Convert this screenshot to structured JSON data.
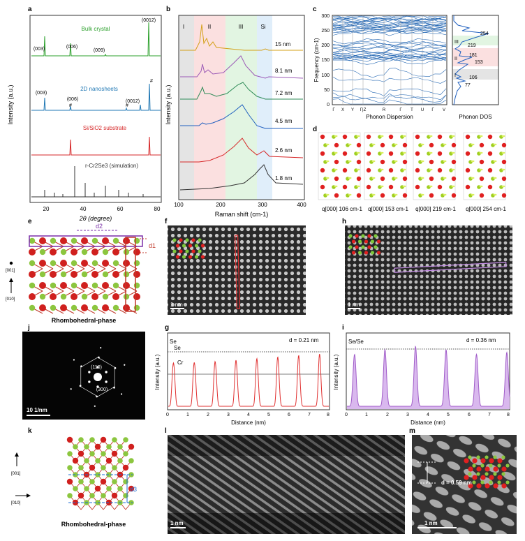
{
  "panel_letters": [
    "a",
    "b",
    "c",
    "d",
    "e",
    "f",
    "g",
    "h",
    "i",
    "j",
    "k",
    "l",
    "m"
  ],
  "panel_a": {
    "ylabel": "Intensity (a.u.)",
    "xlabel": "2θ (degree)",
    "xticks": [
      "20",
      "40",
      "60",
      "80"
    ],
    "labels": {
      "bulk": "Bulk crystal",
      "nano": "2D nanosheets",
      "substrate": "Si/SiO2 substrate",
      "sim": "r-Cr2Se3 (simulation)"
    },
    "peaks_bulk": [
      "(003)",
      "(006)",
      "(009)",
      "(0012)"
    ],
    "peaks_nano": [
      "(003)",
      "(006)",
      "(0012)"
    ],
    "hash": "#",
    "colors": {
      "bulk": "#2ca02c",
      "nano": "#1f77b4",
      "substrate": "#d62728",
      "sim": "#333333"
    }
  },
  "panel_b": {
    "ylabel": "Intensity (a.u.)",
    "xlabel": "Raman shift (cm-1)",
    "xticks": [
      "100",
      "200",
      "300",
      "400"
    ],
    "regions": [
      "I",
      "II",
      "III",
      "Si"
    ],
    "thickness": [
      "15 nm",
      "8.1 nm",
      "7.2 nm",
      "4.5 nm",
      "2.6 nm",
      "1.8 nm"
    ],
    "colors": [
      "#d4a017",
      "#9b59b6",
      "#2e8b57",
      "#1f5fbf",
      "#d62728",
      "#333333"
    ]
  },
  "panel_c": {
    "ylabel": "Frequency (cm-1)",
    "yticks": [
      "0",
      "50",
      "100",
      "150",
      "200",
      "250",
      "300"
    ],
    "xticks": [
      "Γ",
      "X",
      "Y",
      "Γ|Z",
      "R",
      "Γ",
      "T",
      "U",
      "Γ",
      "V"
    ],
    "xlabel": "Phonon Dispersion",
    "dos_label": "Phonon DOS",
    "dos_regions": [
      "III",
      "II",
      "I"
    ],
    "dos_peaks": [
      "254",
      "219",
      "181",
      "153",
      "106",
      "77"
    ]
  },
  "panel_d": {
    "modes": [
      "q[000] 106 cm-1",
      "q[000] 153 cm-1",
      "q[000] 219 cm-1",
      "q[000] 254 cm-1"
    ]
  },
  "panel_e": {
    "d1": "d1",
    "d2": "d2",
    "axis1": "[001]",
    "axis2": "[010]",
    "caption": "Rhombohedral-phase"
  },
  "panel_f": {
    "scale": "1 nm"
  },
  "panel_g": {
    "ylabel": "Intensity (a.u.)",
    "xlabel": "Distance (nm)",
    "xticks": [
      "0",
      "1",
      "2",
      "3",
      "4",
      "5",
      "6",
      "7",
      "8"
    ],
    "d": "d = 0.21 nm",
    "labels": [
      "Se",
      "Se",
      "Cr"
    ]
  },
  "panel_h": {
    "scale": "1 nm"
  },
  "panel_i": {
    "ylabel": "Intensity (a.u.)",
    "xlabel": "Distance (nm)",
    "xticks": [
      "0",
      "1",
      "2",
      "3",
      "4",
      "5",
      "6",
      "7",
      "8"
    ],
    "d": "d = 0.36 nm",
    "label": "Se/Se"
  },
  "panel_j": {
    "spot1": "(110)",
    "spot2": "(300)",
    "scale": "10 1/nm"
  },
  "panel_k": {
    "d3": "d3",
    "axis1": "[001]",
    "axis2": "[010]",
    "caption": "Rhombohedral-phase"
  },
  "panel_l": {
    "scale": "1 nm"
  },
  "panel_m": {
    "d": "d = 0.59 nm",
    "scale": "1 nm"
  }
}
